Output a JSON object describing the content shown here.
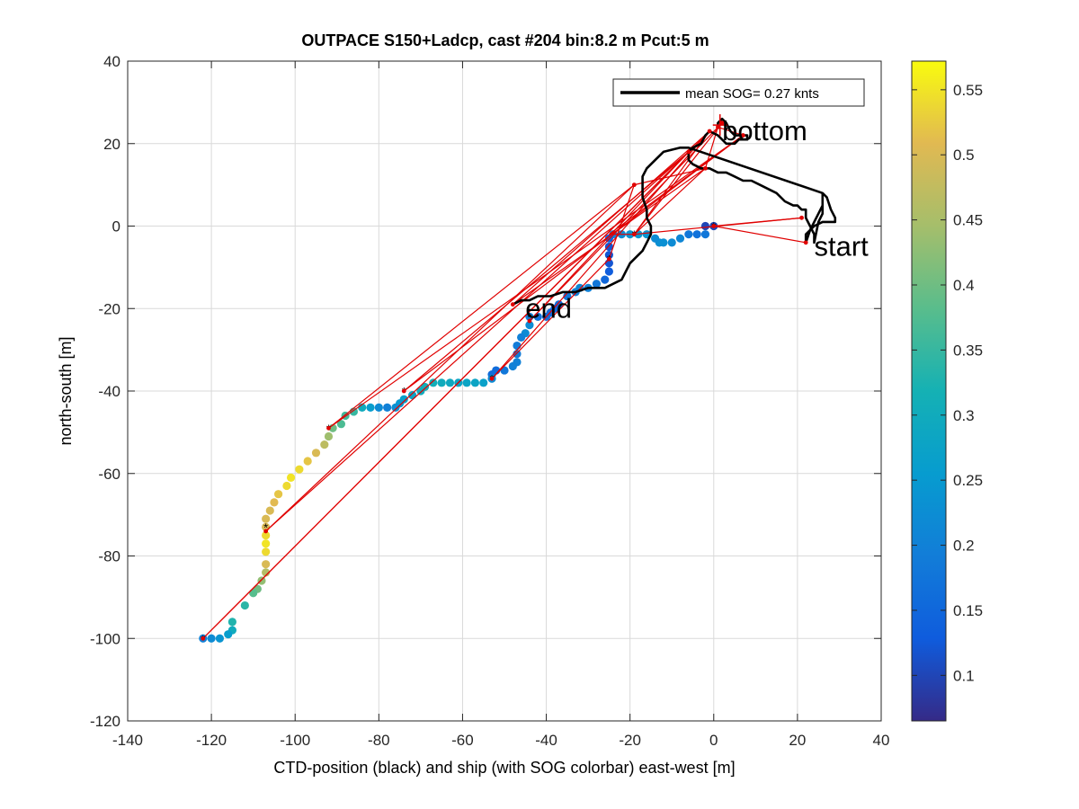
{
  "chart_data": {
    "type": "scatter",
    "title": "OUTPACE S150+Ladcp, cast #204 bin:8.2 m  Pcut:5 m",
    "xlabel": "CTD-position (black) and ship (with SOG colorbar) east-west [m]",
    "ylabel": "north-south [m]",
    "xlim": [
      -140,
      40
    ],
    "ylim": [
      -120,
      40
    ],
    "x_ticks": [
      "-140",
      "-120",
      "-100",
      "-80",
      "-60",
      "-40",
      "-20",
      "0",
      "20",
      "40"
    ],
    "y_ticks": [
      "-120",
      "-100",
      "-80",
      "-60",
      "-40",
      "-20",
      "0",
      "20",
      "40"
    ],
    "grid": true,
    "legend": {
      "placement": "top-right",
      "entries": [
        "mean SOG=  0.27 knts"
      ]
    },
    "annotations": [
      {
        "text": "bottom",
        "x": 2,
        "y": 23
      },
      {
        "text": "start",
        "x": 24,
        "y": -5
      },
      {
        "text": "end",
        "x": -45,
        "y": -20
      }
    ],
    "colorbar": {
      "range": [
        0.065,
        0.572
      ],
      "ticks": [
        "0.1",
        "0.15",
        "0.2",
        "0.25",
        "0.3",
        "0.35",
        "0.4",
        "0.45",
        "0.5",
        "0.55"
      ],
      "tick_values": [
        0.1,
        0.15,
        0.2,
        0.25,
        0.3,
        0.35,
        0.4,
        0.45,
        0.5,
        0.55
      ],
      "colormap": "parula"
    },
    "ship_track_sog": [
      {
        "x": 0,
        "y": 0,
        "c": 0.1
      },
      {
        "x": -2,
        "y": 0,
        "c": 0.1
      },
      {
        "x": -2,
        "y": -2,
        "c": 0.18
      },
      {
        "x": -4,
        "y": -2,
        "c": 0.17
      },
      {
        "x": -6,
        "y": -2,
        "c": 0.18
      },
      {
        "x": -8,
        "y": -3,
        "c": 0.21
      },
      {
        "x": -10,
        "y": -4,
        "c": 0.22
      },
      {
        "x": -12,
        "y": -4,
        "c": 0.23
      },
      {
        "x": -13,
        "y": -4,
        "c": 0.23
      },
      {
        "x": -14,
        "y": -3,
        "c": 0.22
      },
      {
        "x": -16,
        "y": -2,
        "c": 0.24
      },
      {
        "x": -18,
        "y": -2,
        "c": 0.25
      },
      {
        "x": -20,
        "y": -2,
        "c": 0.24
      },
      {
        "x": -22,
        "y": -2,
        "c": 0.22
      },
      {
        "x": -24,
        "y": -2,
        "c": 0.2
      },
      {
        "x": -25,
        "y": -3,
        "c": 0.14
      },
      {
        "x": -25,
        "y": -5,
        "c": 0.12
      },
      {
        "x": -25,
        "y": -7,
        "c": 0.12
      },
      {
        "x": -25,
        "y": -9,
        "c": 0.12
      },
      {
        "x": -25,
        "y": -11,
        "c": 0.13
      },
      {
        "x": -26,
        "y": -13,
        "c": 0.15
      },
      {
        "x": -28,
        "y": -14,
        "c": 0.18
      },
      {
        "x": -30,
        "y": -15,
        "c": 0.2
      },
      {
        "x": -32,
        "y": -15,
        "c": 0.21
      },
      {
        "x": -33,
        "y": -16,
        "c": 0.2
      },
      {
        "x": -35,
        "y": -17,
        "c": 0.18
      },
      {
        "x": -37,
        "y": -19,
        "c": 0.16
      },
      {
        "x": -38,
        "y": -20,
        "c": 0.15
      },
      {
        "x": -39,
        "y": -21,
        "c": 0.15
      },
      {
        "x": -40,
        "y": -22,
        "c": 0.16
      },
      {
        "x": -42,
        "y": -22,
        "c": 0.17
      },
      {
        "x": -44,
        "y": -22,
        "c": 0.2
      },
      {
        "x": -44,
        "y": -24,
        "c": 0.22
      },
      {
        "x": -45,
        "y": -26,
        "c": 0.22
      },
      {
        "x": -46,
        "y": -27,
        "c": 0.2
      },
      {
        "x": -47,
        "y": -29,
        "c": 0.19
      },
      {
        "x": -47,
        "y": -31,
        "c": 0.19
      },
      {
        "x": -47,
        "y": -33,
        "c": 0.2
      },
      {
        "x": -48,
        "y": -34,
        "c": 0.2
      },
      {
        "x": -50,
        "y": -35,
        "c": 0.18
      },
      {
        "x": -52,
        "y": -35,
        "c": 0.16
      },
      {
        "x": -53,
        "y": -36,
        "c": 0.16
      },
      {
        "x": -53,
        "y": -37,
        "c": 0.22
      },
      {
        "x": -55,
        "y": -38,
        "c": 0.27
      },
      {
        "x": -57,
        "y": -38,
        "c": 0.28
      },
      {
        "x": -59,
        "y": -38,
        "c": 0.28
      },
      {
        "x": -61,
        "y": -38,
        "c": 0.28
      },
      {
        "x": -63,
        "y": -38,
        "c": 0.29
      },
      {
        "x": -65,
        "y": -38,
        "c": 0.3
      },
      {
        "x": -67,
        "y": -38,
        "c": 0.31
      },
      {
        "x": -69,
        "y": -39,
        "c": 0.31
      },
      {
        "x": -70,
        "y": -40,
        "c": 0.3
      },
      {
        "x": -72,
        "y": -41,
        "c": 0.28
      },
      {
        "x": -74,
        "y": -42,
        "c": 0.27
      },
      {
        "x": -75,
        "y": -43,
        "c": 0.25
      },
      {
        "x": -76,
        "y": -44,
        "c": 0.23
      },
      {
        "x": -78,
        "y": -44,
        "c": 0.2
      },
      {
        "x": -80,
        "y": -44,
        "c": 0.22
      },
      {
        "x": -82,
        "y": -44,
        "c": 0.26
      },
      {
        "x": -84,
        "y": -44,
        "c": 0.3
      },
      {
        "x": -86,
        "y": -45,
        "c": 0.35
      },
      {
        "x": -88,
        "y": -46,
        "c": 0.36
      },
      {
        "x": -89,
        "y": -48,
        "c": 0.37
      },
      {
        "x": -91,
        "y": -49,
        "c": 0.4
      },
      {
        "x": -92,
        "y": -51,
        "c": 0.44
      },
      {
        "x": -93,
        "y": -53,
        "c": 0.47
      },
      {
        "x": -95,
        "y": -55,
        "c": 0.5
      },
      {
        "x": -97,
        "y": -57,
        "c": 0.52
      },
      {
        "x": -99,
        "y": -59,
        "c": 0.54
      },
      {
        "x": -101,
        "y": -61,
        "c": 0.55
      },
      {
        "x": -102,
        "y": -63,
        "c": 0.54
      },
      {
        "x": -104,
        "y": -65,
        "c": 0.52
      },
      {
        "x": -105,
        "y": -67,
        "c": 0.51
      },
      {
        "x": -106,
        "y": -69,
        "c": 0.5
      },
      {
        "x": -107,
        "y": -71,
        "c": 0.5
      },
      {
        "x": -107,
        "y": -73,
        "c": 0.5
      },
      {
        "x": -107,
        "y": -75,
        "c": 0.54
      },
      {
        "x": -107,
        "y": -77,
        "c": 0.55
      },
      {
        "x": -107,
        "y": -79,
        "c": 0.54
      },
      {
        "x": -107,
        "y": -82,
        "c": 0.5
      },
      {
        "x": -107,
        "y": -84,
        "c": 0.46
      },
      {
        "x": -108,
        "y": -86,
        "c": 0.43
      },
      {
        "x": -109,
        "y": -88,
        "c": 0.4
      },
      {
        "x": -110,
        "y": -89,
        "c": 0.38
      },
      {
        "x": -112,
        "y": -92,
        "c": 0.34
      },
      {
        "x": -115,
        "y": -96,
        "c": 0.33
      },
      {
        "x": -115,
        "y": -98,
        "c": 0.3
      },
      {
        "x": -116,
        "y": -99,
        "c": 0.26
      },
      {
        "x": -118,
        "y": -100,
        "c": 0.24
      },
      {
        "x": -120,
        "y": -100,
        "c": 0.22
      },
      {
        "x": -122,
        "y": -100,
        "c": 0.2
      }
    ],
    "ctd_track": [
      [
        1,
        24
      ],
      [
        1,
        25
      ],
      [
        2,
        26
      ],
      [
        3,
        25
      ],
      [
        4,
        23
      ],
      [
        5,
        22
      ],
      [
        6,
        22
      ],
      [
        7,
        22
      ],
      [
        8,
        22
      ],
      [
        8,
        21
      ],
      [
        7,
        21
      ],
      [
        6,
        21
      ],
      [
        5,
        20
      ],
      [
        3,
        20
      ],
      [
        1,
        22
      ],
      [
        -1,
        23
      ],
      [
        -2,
        22
      ],
      [
        -3,
        20
      ],
      [
        -5,
        19
      ],
      [
        -6,
        18
      ],
      [
        -6,
        16
      ],
      [
        -5,
        15
      ],
      [
        -3,
        14
      ],
      [
        -1,
        14
      ],
      [
        1,
        13
      ],
      [
        3,
        13
      ],
      [
        5,
        12
      ],
      [
        7,
        11
      ],
      [
        9,
        11
      ],
      [
        11,
        10
      ],
      [
        13,
        9
      ],
      [
        15,
        8
      ],
      [
        17,
        6
      ],
      [
        19,
        5
      ],
      [
        20,
        5
      ],
      [
        21,
        4
      ],
      [
        22,
        4
      ],
      [
        22,
        2
      ],
      [
        23,
        0
      ],
      [
        24,
        -2
      ],
      [
        24,
        -4
      ],
      [
        25,
        1
      ],
      [
        26,
        3
      ],
      [
        26,
        6
      ],
      [
        26,
        8
      ],
      [
        27,
        7
      ],
      [
        28,
        4
      ],
      [
        29,
        2
      ],
      [
        29,
        1
      ],
      [
        28,
        1
      ],
      [
        26,
        1
      ],
      [
        24,
        0
      ],
      [
        23,
        -1
      ],
      [
        22,
        -2
      ],
      [
        22,
        -3
      ],
      [
        22,
        -4
      ],
      [
        23,
        -1
      ],
      [
        24,
        1
      ],
      [
        25,
        3
      ],
      [
        26,
        5
      ],
      [
        26,
        8
      ],
      [
        -6,
        19
      ],
      [
        -8,
        19
      ],
      [
        -12,
        18
      ],
      [
        -14,
        16
      ],
      [
        -16,
        14
      ],
      [
        -17,
        12
      ],
      [
        -17,
        10
      ],
      [
        -17,
        7
      ],
      [
        -16,
        4
      ],
      [
        -16,
        2
      ],
      [
        -15,
        0
      ],
      [
        -15,
        -2
      ],
      [
        -16,
        -4
      ],
      [
        -17,
        -6
      ],
      [
        -18,
        -7
      ],
      [
        -20,
        -9
      ],
      [
        -21,
        -11
      ],
      [
        -22,
        -13
      ],
      [
        -24,
        -14
      ],
      [
        -26,
        -15
      ],
      [
        -28,
        -15
      ],
      [
        -30,
        -15
      ],
      [
        -33,
        -16
      ],
      [
        -36,
        -16
      ],
      [
        -39,
        -17
      ],
      [
        -42,
        -17
      ],
      [
        -44,
        -18
      ],
      [
        -46,
        -18
      ],
      [
        -48,
        -19
      ]
    ],
    "red_nodes": [
      [
        22,
        -4
      ],
      [
        21,
        2
      ],
      [
        0,
        0
      ],
      [
        -2,
        14
      ],
      [
        -6,
        18
      ],
      [
        -19,
        10
      ],
      [
        -1,
        23
      ],
      [
        1,
        24
      ],
      [
        2,
        25
      ],
      [
        7,
        22
      ],
      [
        -25,
        -8
      ],
      [
        -19,
        -2
      ],
      [
        -48,
        -19
      ],
      [
        -44,
        -23
      ],
      [
        -53,
        -37
      ],
      [
        -74,
        -40
      ],
      [
        -92,
        -49
      ],
      [
        -107,
        -74
      ],
      [
        -122,
        -100
      ]
    ],
    "red_path_sequence": [
      [
        22,
        -4
      ],
      [
        0,
        0
      ],
      [
        21,
        2
      ],
      [
        -19,
        -2
      ],
      [
        -1,
        23
      ],
      [
        -48,
        -19
      ],
      [
        -2,
        14
      ],
      [
        -19,
        -2
      ],
      [
        2,
        25
      ],
      [
        -44,
        -23
      ],
      [
        -6,
        18
      ],
      [
        -74,
        -40
      ],
      [
        7,
        22
      ],
      [
        -92,
        -49
      ],
      [
        -19,
        10
      ],
      [
        -107,
        -74
      ],
      [
        -6,
        18
      ],
      [
        -122,
        -100
      ],
      [
        -1,
        23
      ],
      [
        -53,
        -37
      ],
      [
        -25,
        -8
      ],
      [
        -19,
        10
      ],
      [
        -2,
        14
      ],
      [
        1,
        24
      ],
      [
        7,
        22
      ],
      [
        -25,
        -2
      ],
      [
        -19,
        -2
      ]
    ],
    "black_star_markers": [
      [
        0,
        0
      ],
      [
        -19,
        -2
      ],
      [
        -25,
        -8
      ],
      [
        -44,
        -22
      ],
      [
        -53,
        -37
      ],
      [
        -74,
        -40
      ],
      [
        -92,
        -49
      ],
      [
        -107,
        -73
      ],
      [
        -122,
        -100
      ]
    ]
  }
}
